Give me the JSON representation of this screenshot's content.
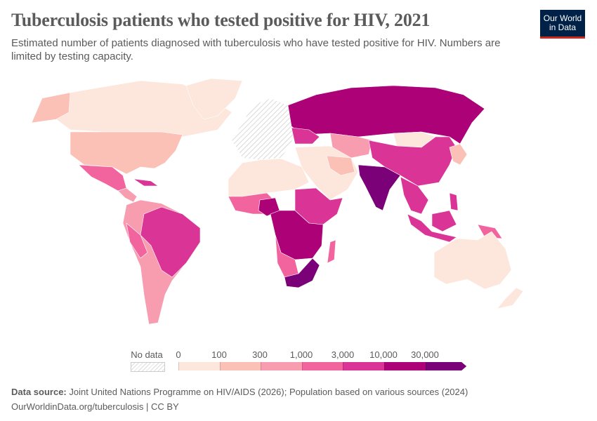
{
  "header": {
    "title": "Tuberculosis patients who tested positive for HIV, 2021",
    "subtitle": "Estimated number of patients diagnosed with tuberculosis who have tested positive for HIV. Numbers are limited by testing capacity.",
    "logo_line1": "Our World",
    "logo_line2": "in Data"
  },
  "legend": {
    "no_data_label": "No data",
    "ticks": [
      "0",
      "100",
      "300",
      "1,000",
      "3,000",
      "10,000",
      "30,000"
    ],
    "bins": [
      {
        "range": "0–100",
        "color": "#fde6dc"
      },
      {
        "range": "100–300",
        "color": "#fbc0b6"
      },
      {
        "range": "300–1,000",
        "color": "#f89cb0"
      },
      {
        "range": "1,000–3,000",
        "color": "#f2649d"
      },
      {
        "range": "3,000–10,000",
        "color": "#da3596"
      },
      {
        "range": "10,000–30,000",
        "color": "#ad0177"
      },
      {
        "range": ">30,000",
        "color": "#7a0177"
      }
    ],
    "no_data_color": "#eeeeee"
  },
  "footer": {
    "source_label": "Data source:",
    "source_text": " Joint United Nations Programme on HIV/AIDS (2026); Population based on various sources (2024)",
    "url_text": "OurWorldinData.org/tuberculosis | CC BY"
  }
}
